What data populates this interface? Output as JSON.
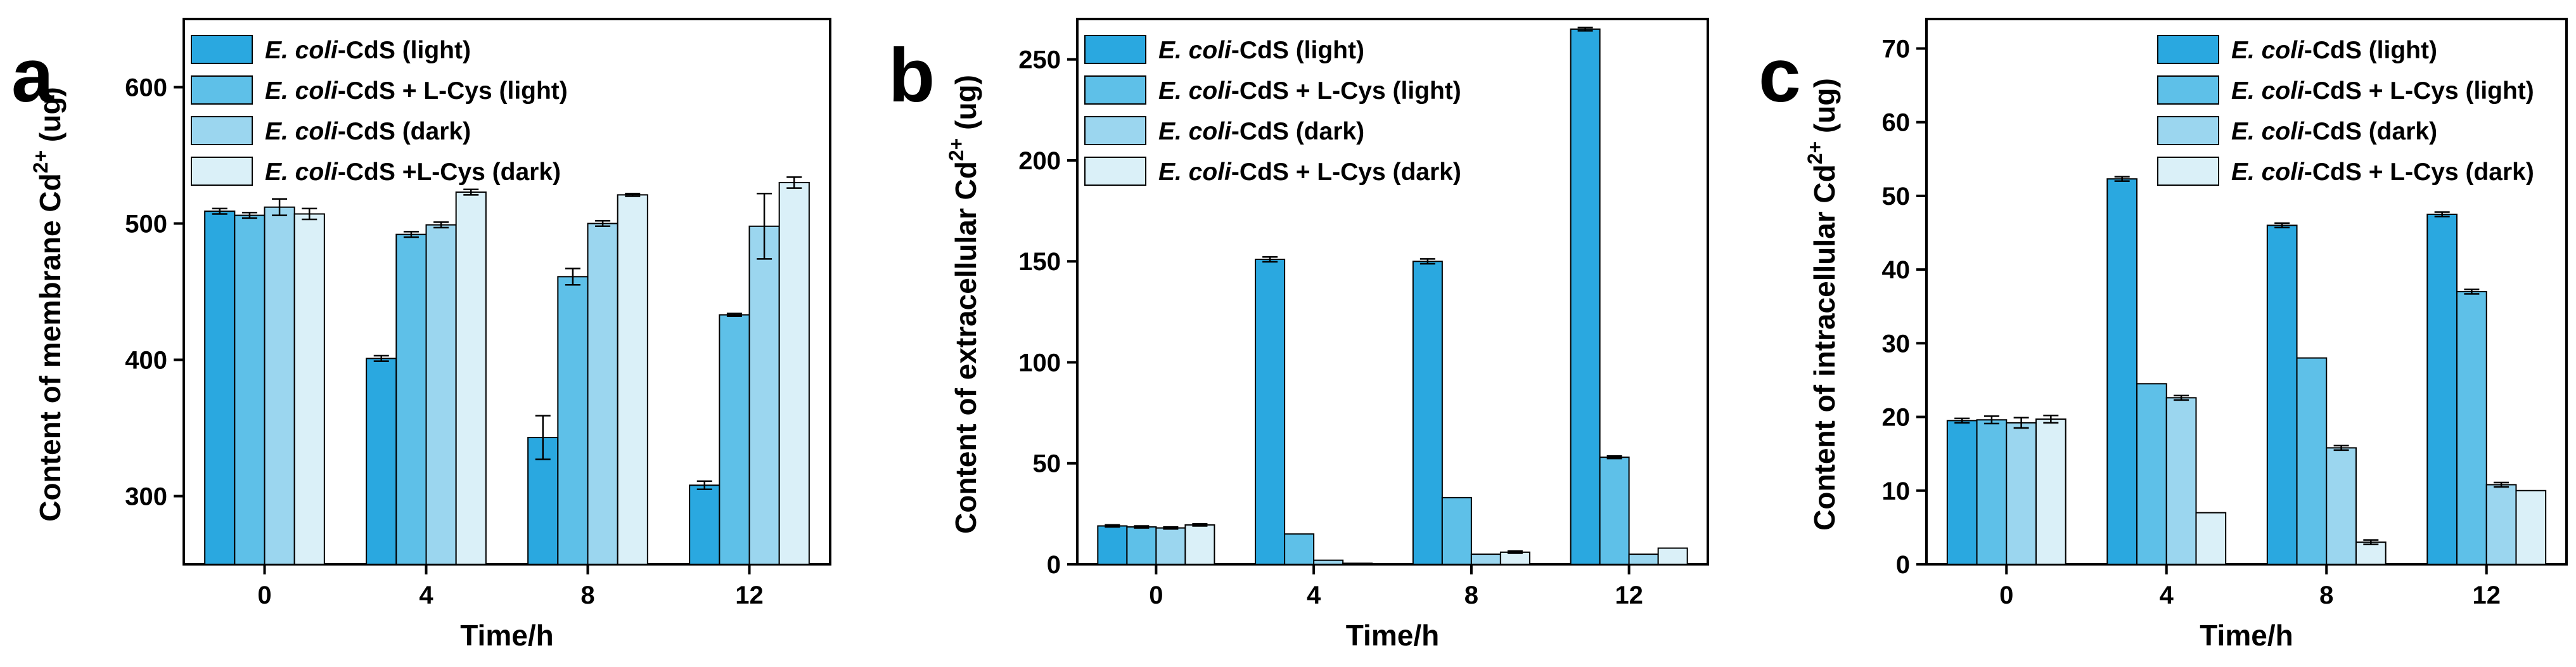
{
  "colors": {
    "series": [
      "#2aa8e0",
      "#5ec0e8",
      "#9bd6ef",
      "#daf0f8"
    ],
    "axis": "#000000",
    "errorbar": "#000000"
  },
  "legend_entries": [
    {
      "italic": "E. coli",
      "rest": "-CdS (light)"
    },
    {
      "italic": "E. coli",
      "rest": "-CdS + L-Cys (light)"
    },
    {
      "italic": "E. coli",
      "rest": "-CdS (dark)"
    }
  ],
  "legend_variant_a": {
    "italic": "E. coli",
    "rest": "-CdS +L-Cys (dark)"
  },
  "legend_variant_bc": {
    "italic": "E. coli",
    "rest": "-CdS + L-Cys (dark)"
  },
  "chart_data": [
    {
      "panel_letter": "a",
      "type": "bar",
      "categories": [
        "0",
        "4",
        "8",
        "12"
      ],
      "xlabel": "Time/h",
      "ylabel_main": "Content of membrane Cd",
      "ylabel_sup": "2+",
      "ylabel_unit": " (ug)",
      "ylim": [
        250,
        650
      ],
      "yticks": [
        "300",
        "400",
        "500",
        "600"
      ],
      "series": [
        {
          "name": "E. coli-CdS (light)",
          "values": [
            509,
            401,
            343,
            308
          ],
          "errors": [
            2,
            2,
            16,
            3
          ]
        },
        {
          "name": "E. coli-CdS + L-Cys (light)",
          "values": [
            506,
            492,
            461,
            433
          ],
          "errors": [
            2,
            2,
            6,
            1
          ]
        },
        {
          "name": "E. coli-CdS (dark)",
          "values": [
            512,
            499,
            500,
            498
          ],
          "errors": [
            6,
            2,
            2,
            24
          ]
        },
        {
          "name": "E. coli-CdS +L-Cys (dark)",
          "values": [
            507,
            523,
            521,
            530
          ],
          "errors": [
            4,
            2,
            1,
            4
          ]
        }
      ]
    },
    {
      "panel_letter": "b",
      "type": "bar",
      "categories": [
        "0",
        "4",
        "8",
        "12"
      ],
      "xlabel": "Time/h",
      "ylabel_main": "Content of extracellular Cd",
      "ylabel_sup": "2+",
      "ylabel_unit": " (ug)",
      "ylim": [
        0,
        270
      ],
      "yticks": [
        "0",
        "50",
        "100",
        "150",
        "200",
        "250"
      ],
      "series": [
        {
          "name": "E. coli-CdS (light)",
          "values": [
            19,
            151,
            150,
            265
          ],
          "errors": [
            0.5,
            1.2,
            1.2,
            0.8
          ]
        },
        {
          "name": "E. coli-CdS + L-Cys (light)",
          "values": [
            18.5,
            15,
            33,
            53
          ],
          "errors": [
            0.5,
            0,
            0,
            0.6
          ]
        },
        {
          "name": "E. coli-CdS (dark)",
          "values": [
            18,
            2,
            5,
            5
          ],
          "errors": [
            0.5,
            0,
            0,
            0
          ]
        },
        {
          "name": "E. coli-CdS + L-Cys (dark)",
          "values": [
            19.5,
            0.5,
            6,
            8
          ],
          "errors": [
            0.5,
            0,
            0.5,
            0
          ]
        }
      ]
    },
    {
      "panel_letter": "c",
      "type": "bar",
      "categories": [
        "0",
        "4",
        "8",
        "12"
      ],
      "xlabel": "Time/h",
      "ylabel_main": "Content of intracellular Cd",
      "ylabel_sup": "2+",
      "ylabel_unit": " (ug)",
      "ylim": [
        0,
        74
      ],
      "yticks": [
        "0",
        "10",
        "20",
        "30",
        "40",
        "50",
        "60",
        "70"
      ],
      "series": [
        {
          "name": "E. coli-CdS (light)",
          "values": [
            19.5,
            52.3,
            46,
            47.5
          ],
          "errors": [
            0.3,
            0.3,
            0.3,
            0.3
          ]
        },
        {
          "name": "E. coli-CdS + L-Cys (light)",
          "values": [
            19.6,
            24.5,
            28,
            37
          ],
          "errors": [
            0.5,
            0,
            0,
            0.3
          ]
        },
        {
          "name": "E. coli-CdS (dark)",
          "values": [
            19.2,
            22.6,
            15.8,
            10.8
          ],
          "errors": [
            0.7,
            0.3,
            0.3,
            0.3
          ]
        },
        {
          "name": "E. coli-CdS + L-Cys (dark)",
          "values": [
            19.7,
            7,
            3,
            10
          ],
          "errors": [
            0.5,
            0,
            0.3,
            0
          ]
        }
      ]
    }
  ]
}
